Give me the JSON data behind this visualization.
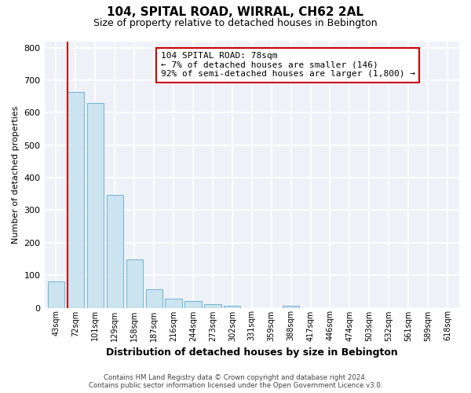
{
  "title_line1": "104, SPITAL ROAD, WIRRAL, CH62 2AL",
  "title_line2": "Size of property relative to detached houses in Bebington",
  "xlabel": "Distribution of detached houses by size in Bebington",
  "ylabel": "Number of detached properties",
  "bar_labels": [
    "43sqm",
    "72sqm",
    "101sqm",
    "129sqm",
    "158sqm",
    "187sqm",
    "216sqm",
    "244sqm",
    "273sqm",
    "302sqm",
    "331sqm",
    "359sqm",
    "388sqm",
    "417sqm",
    "446sqm",
    "474sqm",
    "503sqm",
    "532sqm",
    "561sqm",
    "589sqm",
    "618sqm"
  ],
  "bar_values": [
    82,
    665,
    630,
    348,
    148,
    57,
    27,
    20,
    12,
    5,
    0,
    0,
    6,
    0,
    0,
    0,
    0,
    0,
    0,
    0,
    0
  ],
  "bar_color": "#cce4f0",
  "bar_edge_color": "#7ab8d4",
  "annotation_line1": "104 SPITAL ROAD: 78sqm",
  "annotation_line2": "← 7% of detached houses are smaller (146)",
  "annotation_line3": "92% of semi-detached houses are larger (1,800) →",
  "annotation_box_color": "#ffffff",
  "annotation_box_edge": "#cc0000",
  "vline_color": "#cc0000",
  "vline_x_index": 1,
  "plot_bg_color": "#eef2f8",
  "grid_color": "#ffffff",
  "ylim": [
    0,
    820
  ],
  "yticks": [
    0,
    100,
    200,
    300,
    400,
    500,
    600,
    700,
    800
  ],
  "footer_line1": "Contains HM Land Registry data © Crown copyright and database right 2024.",
  "footer_line2": "Contains public sector information licensed under the Open Government Licence v3.0."
}
